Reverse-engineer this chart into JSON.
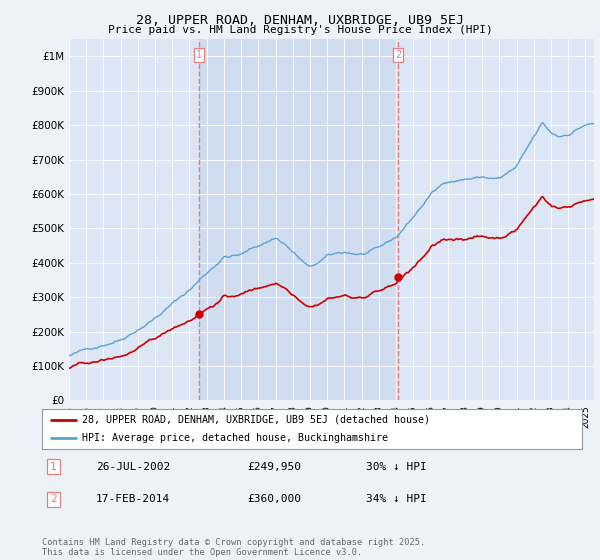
{
  "title": "28, UPPER ROAD, DENHAM, UXBRIDGE, UB9 5EJ",
  "subtitle": "Price paid vs. HM Land Registry's House Price Index (HPI)",
  "background_color": "#eef2f8",
  "plot_bg_color": "#dce6f4",
  "plot_bg_shaded": "#c8d8ef",
  "ylim": [
    0,
    1050000
  ],
  "yticks": [
    0,
    100000,
    200000,
    300000,
    400000,
    500000,
    600000,
    700000,
    800000,
    900000,
    1000000
  ],
  "ytick_labels": [
    "£0",
    "£100K",
    "£200K",
    "£300K",
    "£400K",
    "£500K",
    "£600K",
    "£700K",
    "£800K",
    "£900K",
    "£1M"
  ],
  "hpi_color": "#5ba3d0",
  "price_color": "#cc0000",
  "vline_color": "#e08080",
  "sale1_year": 2002,
  "sale1_month": 7,
  "sale1_price": 249950,
  "sale2_year": 2014,
  "sale2_month": 2,
  "sale2_price": 360000,
  "legend_line1": "28, UPPER ROAD, DENHAM, UXBRIDGE, UB9 5EJ (detached house)",
  "legend_line2": "HPI: Average price, detached house, Buckinghamshire",
  "table_row1": [
    "1",
    "26-JUL-2002",
    "£249,950",
    "30% ↓ HPI"
  ],
  "table_row2": [
    "2",
    "17-FEB-2014",
    "£360,000",
    "34% ↓ HPI"
  ],
  "footer": "Contains HM Land Registry data © Crown copyright and database right 2025.\nThis data is licensed under the Open Government Licence v3.0."
}
